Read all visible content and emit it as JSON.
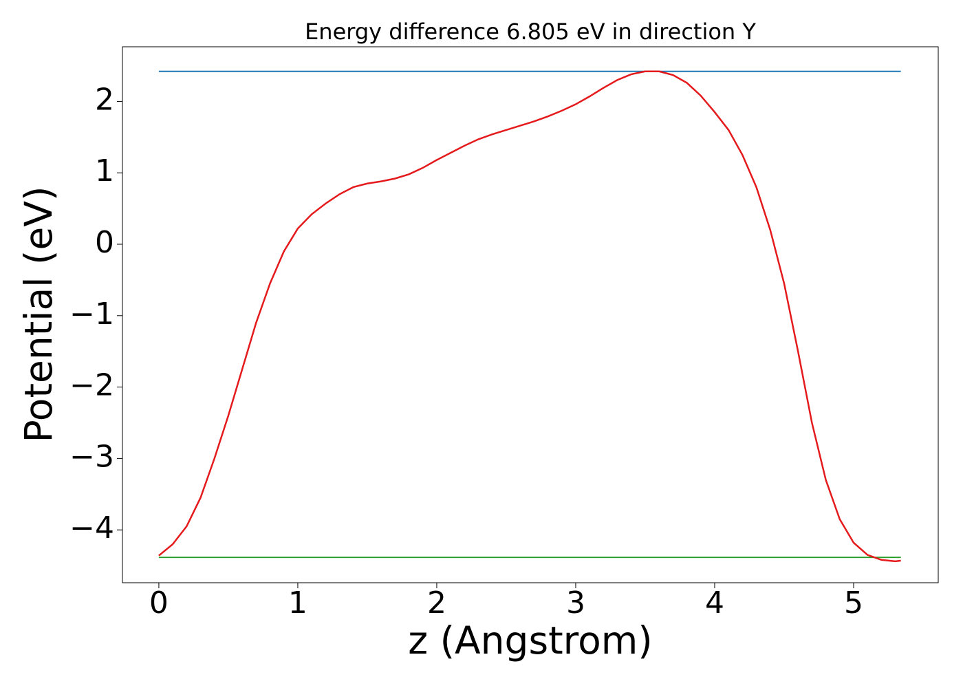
{
  "chart_data": {
    "type": "line",
    "title": "Energy difference 6.805 eV in direction Y",
    "xlabel": "z (Angstrom)",
    "ylabel": "Potential (eV)",
    "x": [
      0,
      0.1,
      0.2,
      0.3,
      0.4,
      0.5,
      0.6,
      0.7,
      0.8,
      0.9,
      1.0,
      1.1,
      1.2,
      1.3,
      1.4,
      1.5,
      1.6,
      1.7,
      1.8,
      1.9,
      2.0,
      2.1,
      2.2,
      2.3,
      2.4,
      2.5,
      2.6,
      2.7,
      2.8,
      2.9,
      3.0,
      3.1,
      3.2,
      3.3,
      3.4,
      3.5,
      3.6,
      3.7,
      3.8,
      3.9,
      4.0,
      4.1,
      4.2,
      4.3,
      4.4,
      4.5,
      4.6,
      4.7,
      4.8,
      4.9,
      5.0,
      5.1,
      5.2,
      5.3,
      5.34
    ],
    "series": [
      {
        "color": "#1f77b4",
        "values": [
          2.42,
          2.42,
          2.42,
          2.42,
          2.42,
          2.42,
          2.42,
          2.42,
          2.42,
          2.42,
          2.42,
          2.42,
          2.42,
          2.42,
          2.42,
          2.42,
          2.42,
          2.42,
          2.42,
          2.42,
          2.42,
          2.42,
          2.42,
          2.42,
          2.42,
          2.42,
          2.42,
          2.42,
          2.42,
          2.42,
          2.42,
          2.42,
          2.42,
          2.42,
          2.42,
          2.42,
          2.42,
          2.42,
          2.42,
          2.42,
          2.42,
          2.42,
          2.42,
          2.42,
          2.42,
          2.42,
          2.42,
          2.42,
          2.42,
          2.42,
          2.42,
          2.42,
          2.42,
          2.42,
          2.42
        ]
      },
      {
        "color": "#2ca02c",
        "values": [
          -4.385,
          -4.385,
          -4.385,
          -4.385,
          -4.385,
          -4.385,
          -4.385,
          -4.385,
          -4.385,
          -4.385,
          -4.385,
          -4.385,
          -4.385,
          -4.385,
          -4.385,
          -4.385,
          -4.385,
          -4.385,
          -4.385,
          -4.385,
          -4.385,
          -4.385,
          -4.385,
          -4.385,
          -4.385,
          -4.385,
          -4.385,
          -4.385,
          -4.385,
          -4.385,
          -4.385,
          -4.385,
          -4.385,
          -4.385,
          -4.385,
          -4.385,
          -4.385,
          -4.385,
          -4.385,
          -4.385,
          -4.385,
          -4.385,
          -4.385,
          -4.385,
          -4.385,
          -4.385,
          -4.385,
          -4.385,
          -4.385,
          -4.385,
          -4.385,
          -4.385,
          -4.385,
          -4.385,
          -4.385
        ]
      },
      {
        "color": "#e41a1c",
        "values": [
          -4.36,
          -4.2,
          -3.95,
          -3.55,
          -3.0,
          -2.4,
          -1.75,
          -1.1,
          -0.55,
          -0.1,
          0.22,
          0.42,
          0.57,
          0.7,
          0.8,
          0.85,
          0.88,
          0.92,
          0.98,
          1.07,
          1.18,
          1.28,
          1.38,
          1.47,
          1.54,
          1.6,
          1.66,
          1.72,
          1.79,
          1.87,
          1.96,
          2.07,
          2.19,
          2.3,
          2.38,
          2.42,
          2.42,
          2.37,
          2.26,
          2.08,
          1.85,
          1.6,
          1.25,
          0.8,
          0.2,
          -0.55,
          -1.5,
          -2.5,
          -3.3,
          -3.85,
          -4.18,
          -4.35,
          -4.42,
          -4.44,
          -4.43
        ]
      }
    ],
    "xlim": [
      -0.262,
      5.609
    ],
    "ylim": [
      -4.74,
      2.765
    ],
    "xticks": [
      0,
      1,
      2,
      3,
      4,
      5
    ],
    "yticks": [
      {
        "value": -4,
        "label": "−4"
      },
      {
        "value": -3,
        "label": "−3"
      },
      {
        "value": -2,
        "label": "−2"
      },
      {
        "value": -1,
        "label": "−1"
      },
      0,
      1,
      2
    ]
  }
}
